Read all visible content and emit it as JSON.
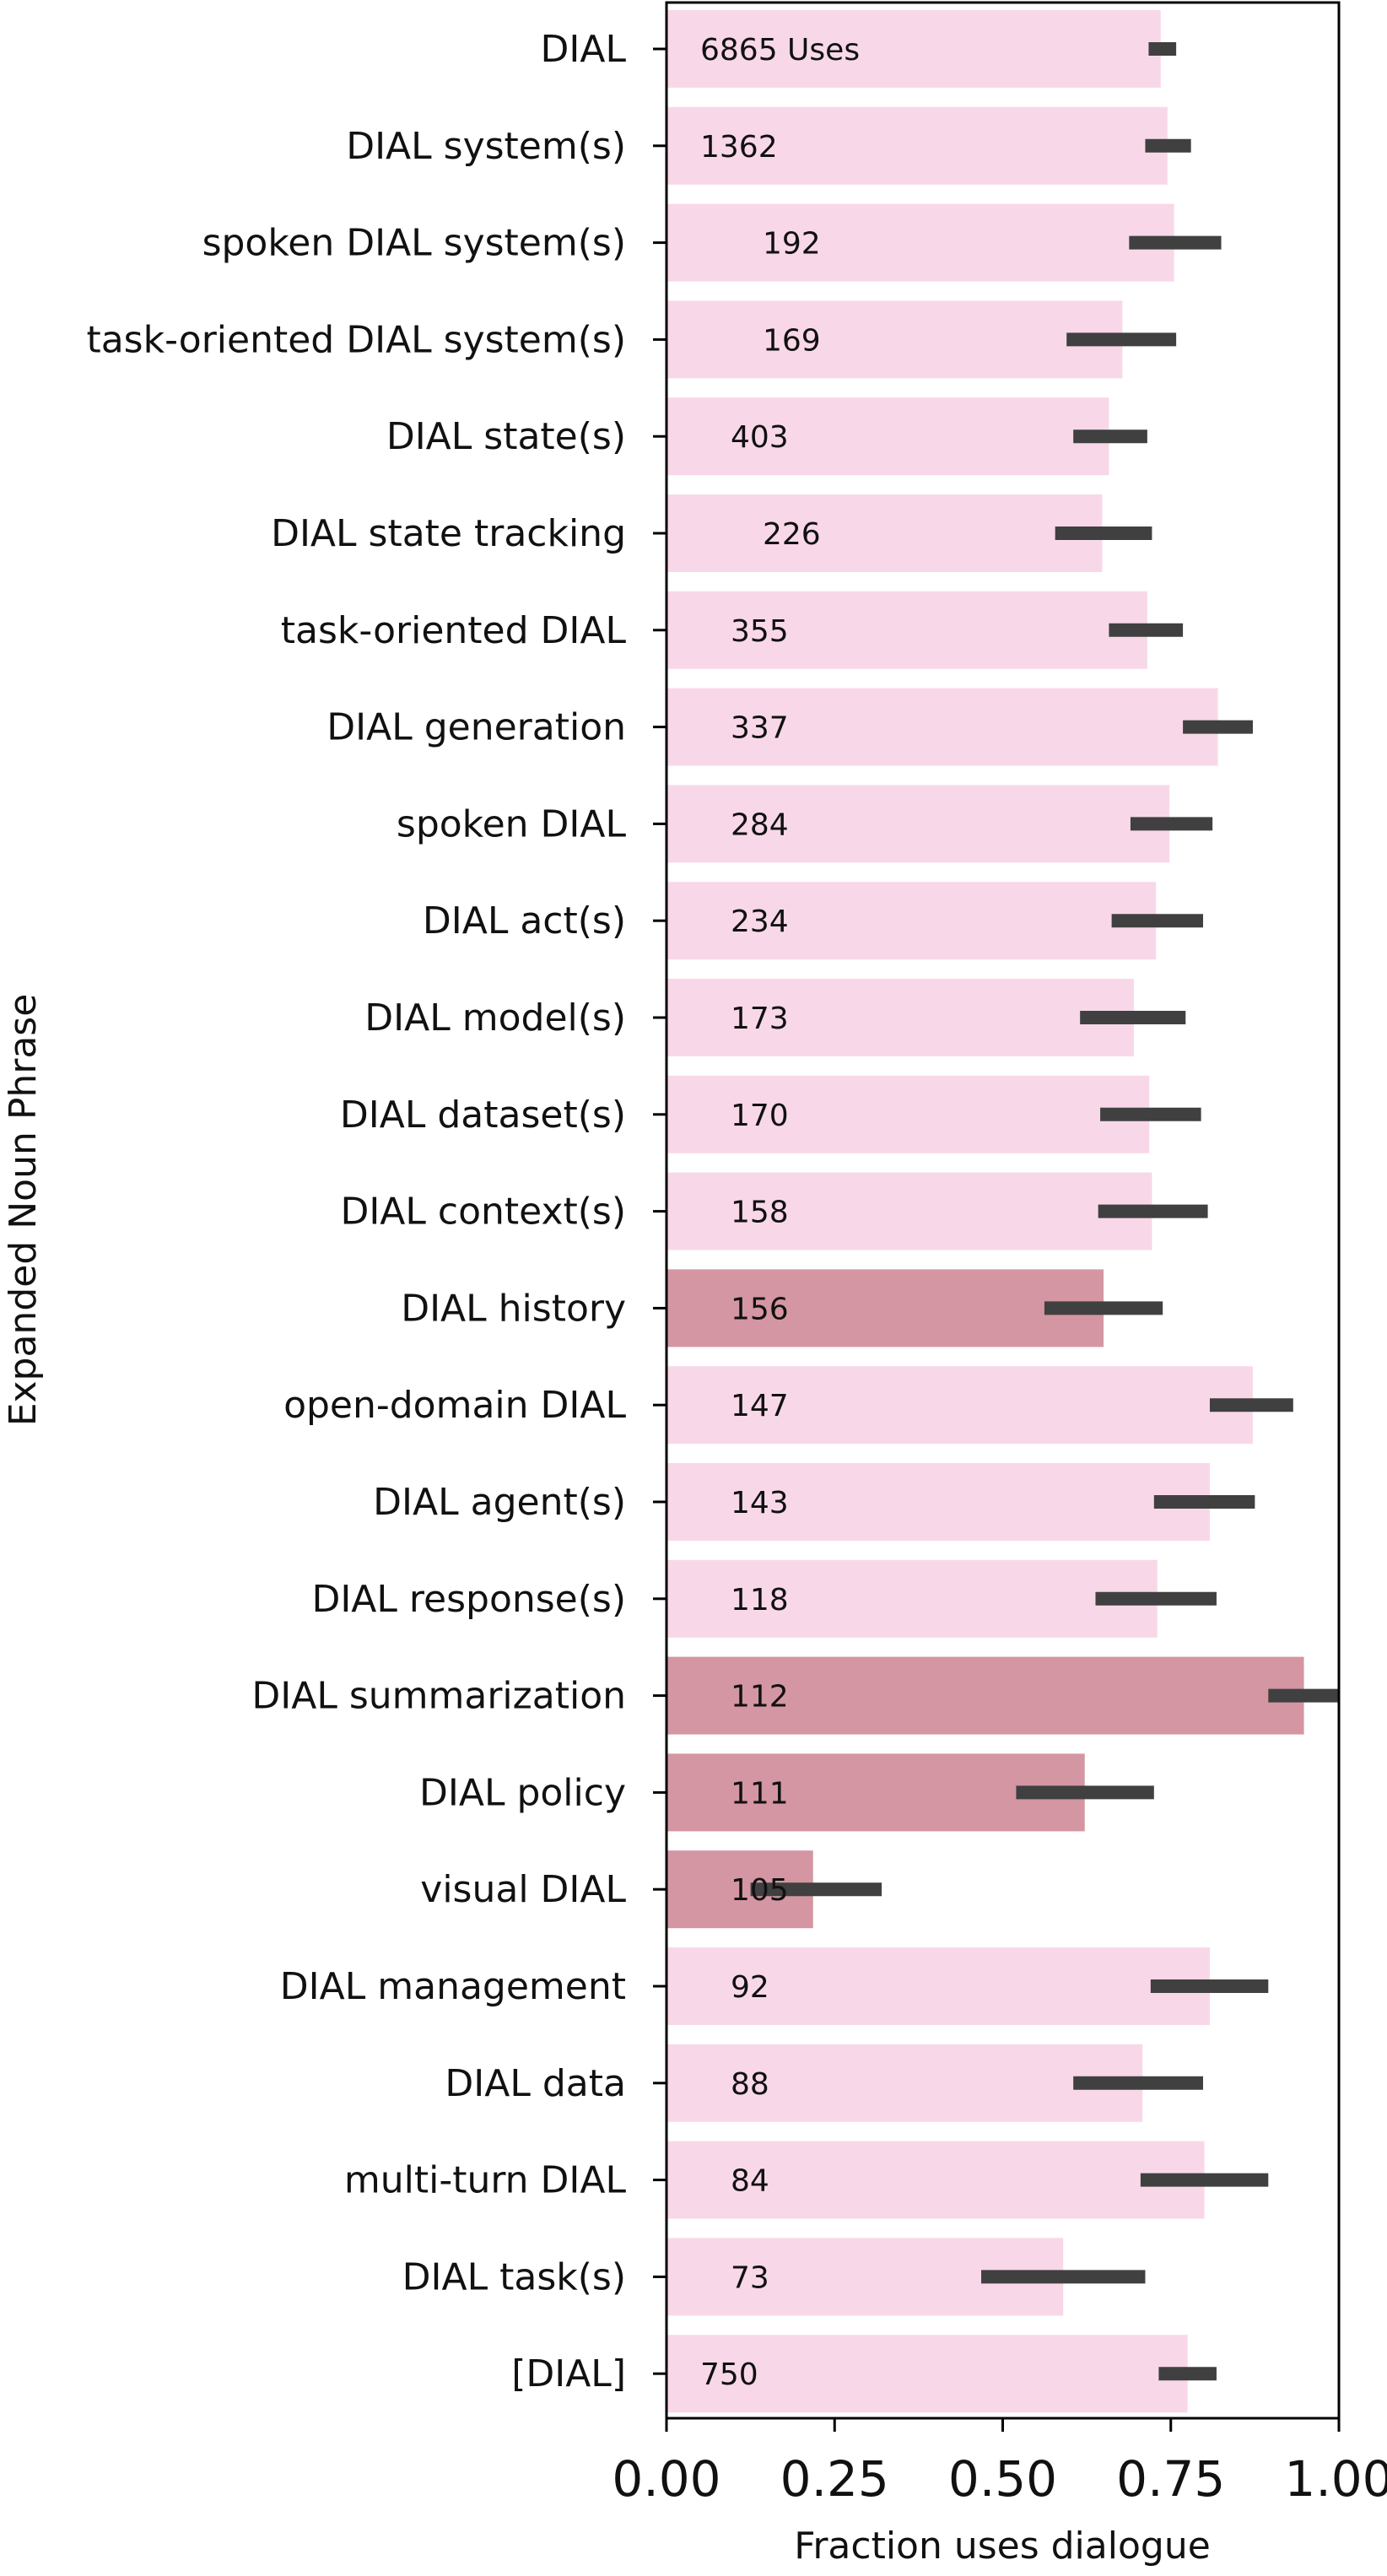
{
  "chart_data": {
    "type": "bar",
    "orientation": "horizontal",
    "xlabel": "Fraction uses dialogue",
    "ylabel": "Expanded Noun Phrase",
    "xlim": [
      0,
      1
    ],
    "xticks": [
      "0.00",
      "0.25",
      "0.50",
      "0.75",
      "1.00"
    ],
    "xtick_values": [
      0,
      0.25,
      0.5,
      0.75,
      1.0
    ],
    "colors": {
      "normal": "#f8d8e8",
      "highlight": "#d496a2",
      "error_bar": "#404040"
    },
    "categories": [
      "DIAL",
      "DIAL system(s)",
      "spoken DIAL system(s)",
      "task-oriented DIAL system(s)",
      "DIAL state(s)",
      "DIAL state tracking",
      "task-oriented DIAL",
      "DIAL generation",
      "spoken DIAL",
      "DIAL act(s)",
      "DIAL model(s)",
      "DIAL dataset(s)",
      "DIAL context(s)",
      "DIAL history",
      "open-domain DIAL",
      "DIAL agent(s)",
      "DIAL response(s)",
      "DIAL summarization",
      "DIAL policy",
      "visual DIAL",
      "DIAL management",
      "DIAL data",
      "multi-turn DIAL",
      "DIAL task(s)",
      "[DIAL]"
    ],
    "values": [
      0.735,
      0.745,
      0.755,
      0.678,
      0.658,
      0.648,
      0.715,
      0.82,
      0.748,
      0.728,
      0.695,
      0.718,
      0.722,
      0.65,
      0.872,
      0.808,
      0.73,
      0.948,
      0.622,
      0.218,
      0.808,
      0.708,
      0.8,
      0.59,
      0.775
    ],
    "error_low": [
      0.717,
      0.712,
      0.688,
      0.595,
      0.605,
      0.578,
      0.658,
      0.768,
      0.69,
      0.662,
      0.615,
      0.645,
      0.642,
      0.562,
      0.808,
      0.725,
      0.638,
      0.895,
      0.52,
      0.125,
      0.72,
      0.605,
      0.705,
      0.468,
      0.732
    ],
    "error_high": [
      0.758,
      0.78,
      0.825,
      0.758,
      0.715,
      0.722,
      0.768,
      0.872,
      0.812,
      0.798,
      0.772,
      0.795,
      0.805,
      0.738,
      0.932,
      0.875,
      0.818,
      1.0,
      0.725,
      0.32,
      0.895,
      0.798,
      0.895,
      0.712,
      0.818
    ],
    "counts": [
      "6865 Uses",
      "1362",
      "192",
      "169",
      "403",
      "226",
      "355",
      "337",
      "284",
      "234",
      "173",
      "170",
      "158",
      "156",
      "147",
      "143",
      "118",
      "112",
      "111",
      "105",
      "92",
      "88",
      "84",
      "73",
      "750"
    ],
    "highlighted": [
      false,
      false,
      false,
      false,
      false,
      false,
      false,
      false,
      false,
      false,
      false,
      false,
      false,
      true,
      false,
      false,
      false,
      true,
      true,
      true,
      false,
      false,
      false,
      false,
      false
    ]
  }
}
